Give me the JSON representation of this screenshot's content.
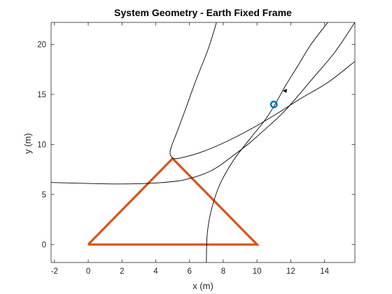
{
  "chart_data": {
    "type": "line",
    "title": "System Geometry - Earth Fixed Frame",
    "xlabel": "x (m)",
    "ylabel": "y (m)",
    "xlim": [
      -2.2,
      15.8
    ],
    "ylim": [
      -1.8,
      22.2
    ],
    "xticks": [
      -2,
      0,
      2,
      4,
      6,
      8,
      10,
      12,
      14
    ],
    "yticks": [
      0,
      5,
      10,
      15,
      20
    ],
    "grid": false,
    "box": true,
    "series": [
      {
        "color": "#d95319",
        "style": "solid-thick",
        "x": [
          0,
          10,
          5,
          0
        ],
        "y": [
          0,
          0,
          8.6,
          0
        ]
      },
      {
        "color": "#000000",
        "style": "thin",
        "x": [
          -2.2,
          0,
          2,
          4,
          5.5,
          6.6,
          7.2,
          7.8,
          8.6,
          9.6,
          10.6,
          11.5,
          12.4,
          13.4,
          14.6,
          15.8
        ],
        "y": [
          6.2,
          6.1,
          6.05,
          6.15,
          6.4,
          6.9,
          7.3,
          7.9,
          8.9,
          10.2,
          11.7,
          13.1,
          14.8,
          16.8,
          19.2,
          22.2
        ]
      },
      {
        "color": "#000000",
        "style": "thin",
        "x": [
          7.0,
          7.05,
          7.3,
          7.8,
          8.6,
          9.6,
          10.5,
          11.1,
          11.7,
          12.4,
          13.2,
          14.2
        ],
        "y": [
          -1.8,
          1.0,
          3.5,
          6.0,
          8.4,
          10.6,
          12.5,
          14.1,
          15.9,
          17.8,
          20.0,
          22.2
        ]
      },
      {
        "color": "#000000",
        "style": "thin",
        "x": [
          7.6,
          7.1,
          6.4,
          5.8,
          5.3,
          4.95,
          4.85,
          5.05,
          5.6,
          6.8,
          8.2,
          9.7,
          11.2,
          12.6,
          14.2,
          15.8
        ],
        "y": [
          22.2,
          19.5,
          16.5,
          13.7,
          11.4,
          9.9,
          9.1,
          8.6,
          8.7,
          9.3,
          10.3,
          11.6,
          13.1,
          14.6,
          16.2,
          18.3
        ]
      },
      {
        "color": "#0072bd",
        "style": "marker-circle",
        "x": [
          11.0
        ],
        "y": [
          14.0
        ]
      }
    ],
    "annotations": [
      {
        "type": "arrow",
        "x": 11.7,
        "y": 15.4,
        "color": "#000000"
      }
    ]
  }
}
